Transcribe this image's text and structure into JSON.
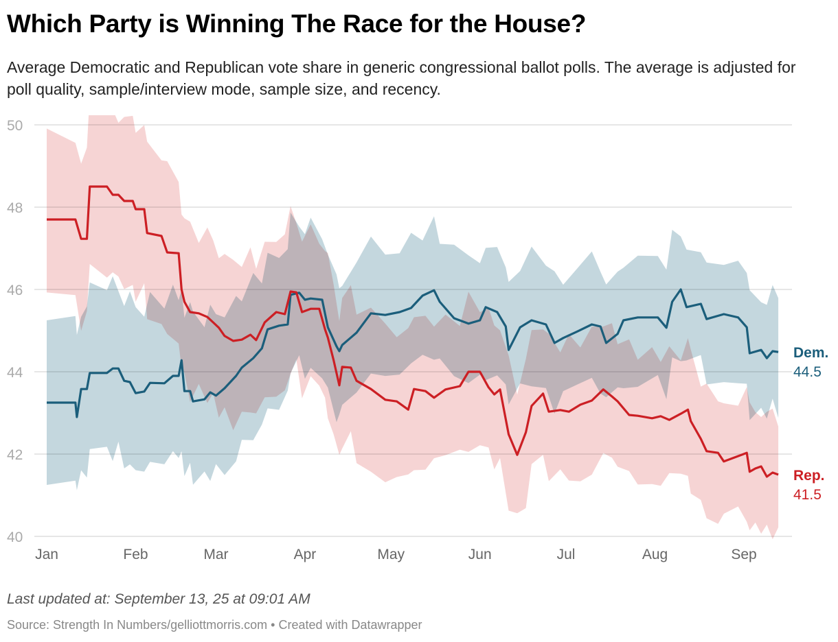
{
  "header": {
    "title": "Which Party is Winning The Race for the House?",
    "subtitle": "Average Democratic and Republican vote share in generic congressional ballot polls. The average is adjusted for poll quality, sample/interview mode, sample size, and recency."
  },
  "footer": {
    "updated": "Last updated at: September 13, 25 at 09:01 AM",
    "source": "Source: Strength In Numbers/gelliottmorris.com • Created with Datawrapper"
  },
  "chart_data": {
    "type": "line",
    "title": "Which Party is Winning The Race for the House?",
    "xlabel": "",
    "ylabel": "",
    "x_unit": "day of year (0 = Jan 1)",
    "xlim": [
      0,
      255
    ],
    "ylim": [
      40,
      50
    ],
    "grid": true,
    "y_ticks": [
      "40",
      "42",
      "44",
      "46",
      "48",
      "50"
    ],
    "x_ticks": [
      {
        "label": "Jan",
        "day": 0
      },
      {
        "label": "Feb",
        "day": 31
      },
      {
        "label": "Mar",
        "day": 59
      },
      {
        "label": "Apr",
        "day": 90
      },
      {
        "label": "May",
        "day": 120
      },
      {
        "label": "Jun",
        "day": 151
      },
      {
        "label": "Jul",
        "day": 181
      },
      {
        "label": "Aug",
        "day": 212
      },
      {
        "label": "Sep",
        "day": 243
      }
    ],
    "series": [
      {
        "name": "Dem.",
        "end_label": "44.5",
        "color": "#1b5e7b",
        "band_color": "#9dbcc8",
        "band_halfwidth": [
          [
            0,
            2.0
          ],
          [
            40,
            2.0
          ],
          [
            120,
            1.6
          ],
          [
            220,
            1.5
          ],
          [
            255,
            1.35
          ]
        ],
        "points": [
          [
            0,
            43.25
          ],
          [
            10,
            43.25
          ],
          [
            10.5,
            42.9
          ],
          [
            12,
            43.58
          ],
          [
            14,
            43.58
          ],
          [
            15,
            43.97
          ],
          [
            21,
            43.97
          ],
          [
            23,
            44.08
          ],
          [
            25,
            44.08
          ],
          [
            27,
            43.78
          ],
          [
            29,
            43.75
          ],
          [
            31,
            43.48
          ],
          [
            34,
            43.52
          ],
          [
            36,
            43.73
          ],
          [
            41,
            43.72
          ],
          [
            44,
            43.9
          ],
          [
            46,
            43.9
          ],
          [
            47,
            44.28
          ],
          [
            48,
            43.53
          ],
          [
            50,
            43.53
          ],
          [
            51,
            43.28
          ],
          [
            55,
            43.33
          ],
          [
            57,
            43.5
          ],
          [
            59,
            43.42
          ],
          [
            62,
            43.6
          ],
          [
            66,
            43.9
          ],
          [
            68,
            44.1
          ],
          [
            72,
            44.33
          ],
          [
            75,
            44.57
          ],
          [
            77,
            45.03
          ],
          [
            81,
            45.12
          ],
          [
            84,
            45.15
          ],
          [
            85,
            45.87
          ],
          [
            88,
            45.92
          ],
          [
            90,
            45.75
          ],
          [
            92,
            45.78
          ],
          [
            96,
            45.75
          ],
          [
            98,
            45.08
          ],
          [
            101,
            44.62
          ],
          [
            102,
            44.5
          ],
          [
            103,
            44.65
          ],
          [
            108,
            44.95
          ],
          [
            113,
            45.42
          ],
          [
            118,
            45.38
          ],
          [
            123,
            45.45
          ],
          [
            127,
            45.55
          ],
          [
            131,
            45.85
          ],
          [
            135,
            45.98
          ],
          [
            137,
            45.7
          ],
          [
            142,
            45.3
          ],
          [
            147,
            45.17
          ],
          [
            151,
            45.25
          ],
          [
            153,
            45.57
          ],
          [
            157,
            45.45
          ],
          [
            160,
            45.1
          ],
          [
            161,
            44.53
          ],
          [
            165,
            45.08
          ],
          [
            169,
            45.25
          ],
          [
            174,
            45.15
          ],
          [
            177,
            44.7
          ],
          [
            180,
            44.82
          ],
          [
            185,
            44.98
          ],
          [
            190,
            45.15
          ],
          [
            193,
            45.1
          ],
          [
            195,
            44.7
          ],
          [
            199,
            44.92
          ],
          [
            201,
            45.25
          ],
          [
            206,
            45.32
          ],
          [
            213,
            45.32
          ],
          [
            216,
            45.07
          ],
          [
            218,
            45.7
          ],
          [
            221,
            46.0
          ],
          [
            223,
            45.57
          ],
          [
            228,
            45.65
          ],
          [
            230,
            45.28
          ],
          [
            236,
            45.4
          ],
          [
            241,
            45.32
          ],
          [
            244,
            45.08
          ],
          [
            245,
            44.45
          ],
          [
            249,
            44.53
          ],
          [
            251,
            44.33
          ],
          [
            253,
            44.5
          ],
          [
            255,
            44.48
          ]
        ]
      },
      {
        "name": "Rep.",
        "end_label": "41.5",
        "color": "#cc1f24",
        "band_color": "#f0b7b7",
        "band_halfwidth": [
          [
            0,
            2.0
          ],
          [
            40,
            2.0
          ],
          [
            120,
            1.75
          ],
          [
            200,
            1.6
          ],
          [
            255,
            1.4
          ]
        ],
        "points": [
          [
            0,
            47.7
          ],
          [
            10,
            47.7
          ],
          [
            12,
            47.23
          ],
          [
            14,
            47.23
          ],
          [
            15,
            48.5
          ],
          [
            21,
            48.5
          ],
          [
            23,
            48.3
          ],
          [
            25,
            48.3
          ],
          [
            27,
            48.15
          ],
          [
            30,
            48.15
          ],
          [
            31,
            47.95
          ],
          [
            34,
            47.95
          ],
          [
            35,
            47.37
          ],
          [
            40,
            47.3
          ],
          [
            42,
            46.9
          ],
          [
            46,
            46.88
          ],
          [
            47,
            46.0
          ],
          [
            48,
            45.7
          ],
          [
            50,
            45.45
          ],
          [
            53,
            45.42
          ],
          [
            56,
            45.33
          ],
          [
            58,
            45.2
          ],
          [
            60,
            45.07
          ],
          [
            62,
            44.87
          ],
          [
            65,
            44.75
          ],
          [
            68,
            44.78
          ],
          [
            71,
            44.9
          ],
          [
            73,
            44.77
          ],
          [
            76,
            45.2
          ],
          [
            80,
            45.45
          ],
          [
            83,
            45.4
          ],
          [
            85,
            45.95
          ],
          [
            87,
            45.93
          ],
          [
            89,
            45.45
          ],
          [
            92,
            45.53
          ],
          [
            95,
            45.53
          ],
          [
            97,
            45.03
          ],
          [
            98,
            44.83
          ],
          [
            100,
            44.28
          ],
          [
            102,
            43.67
          ],
          [
            103,
            44.12
          ],
          [
            106,
            44.1
          ],
          [
            108,
            43.78
          ],
          [
            113,
            43.58
          ],
          [
            118,
            43.32
          ],
          [
            122,
            43.28
          ],
          [
            126,
            43.08
          ],
          [
            128,
            43.58
          ],
          [
            132,
            43.53
          ],
          [
            135,
            43.37
          ],
          [
            139,
            43.57
          ],
          [
            144,
            43.65
          ],
          [
            147,
            44.0
          ],
          [
            151,
            44.0
          ],
          [
            154,
            43.62
          ],
          [
            156,
            43.45
          ],
          [
            158,
            43.57
          ],
          [
            161,
            42.48
          ],
          [
            164,
            41.98
          ],
          [
            167,
            42.53
          ],
          [
            169,
            43.17
          ],
          [
            173,
            43.47
          ],
          [
            175,
            43.03
          ],
          [
            179,
            43.07
          ],
          [
            182,
            43.03
          ],
          [
            186,
            43.2
          ],
          [
            190,
            43.3
          ],
          [
            194,
            43.57
          ],
          [
            197,
            43.4
          ],
          [
            199,
            43.28
          ],
          [
            203,
            42.95
          ],
          [
            206,
            42.93
          ],
          [
            211,
            42.87
          ],
          [
            214,
            42.92
          ],
          [
            217,
            42.83
          ],
          [
            221,
            42.98
          ],
          [
            223.5,
            43.08
          ],
          [
            224.5,
            42.8
          ],
          [
            228,
            42.37
          ],
          [
            230,
            42.07
          ],
          [
            234,
            42.03
          ],
          [
            236,
            41.82
          ],
          [
            241,
            41.95
          ],
          [
            244,
            42.03
          ],
          [
            245,
            41.57
          ],
          [
            247,
            41.65
          ],
          [
            249,
            41.7
          ],
          [
            251,
            41.45
          ],
          [
            253,
            41.55
          ],
          [
            255,
            41.5
          ]
        ]
      }
    ]
  }
}
